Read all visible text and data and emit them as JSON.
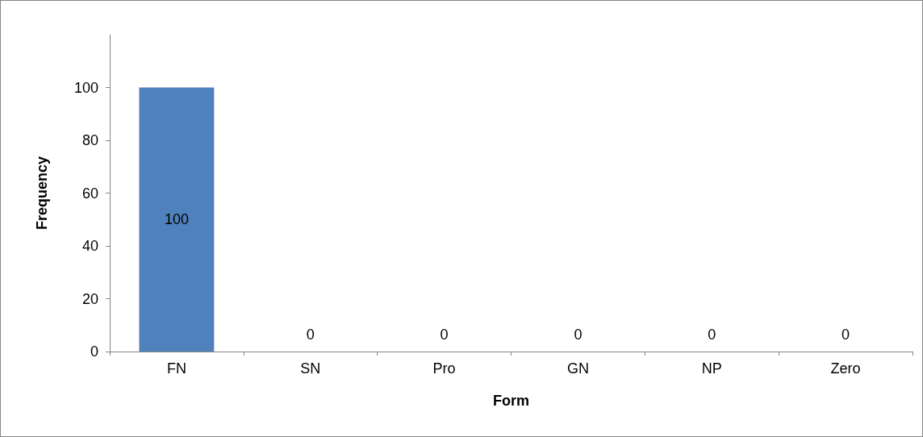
{
  "chart_data": {
    "type": "bar",
    "xlabel": "Form",
    "ylabel": "Frequency",
    "categories": [
      "FN",
      "SN",
      "Pro",
      "GN",
      "NP",
      "Zero"
    ],
    "values": [
      100,
      0,
      0,
      0,
      0,
      0
    ],
    "color": "#4f81bd",
    "ylim": [
      0,
      120
    ],
    "yticks": [
      0,
      20,
      40,
      60,
      80,
      100
    ],
    "grid": false,
    "data_labels": true
  }
}
